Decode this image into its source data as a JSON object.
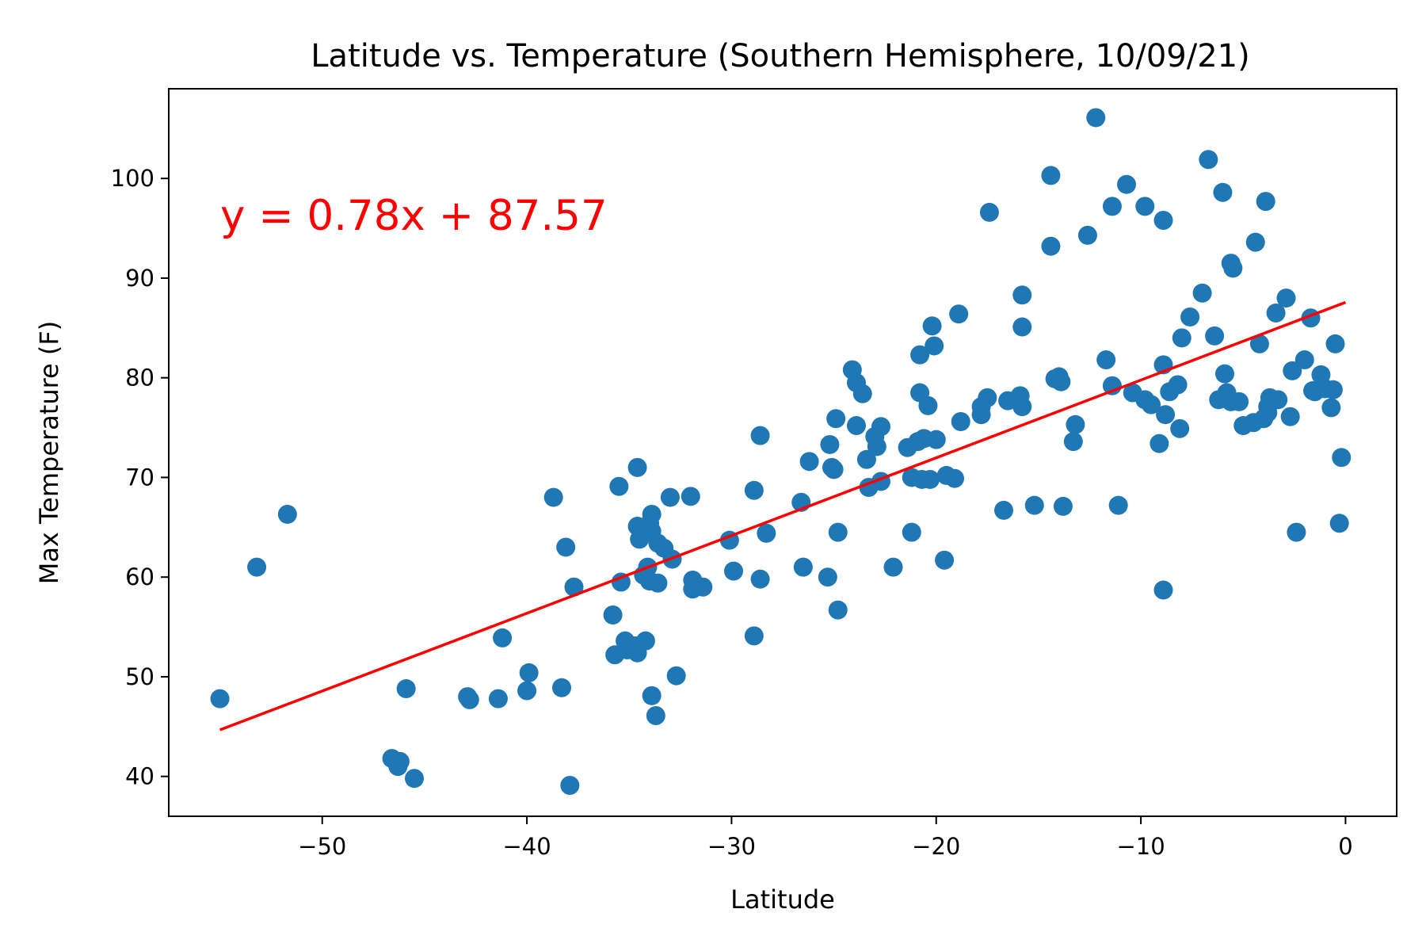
{
  "chart_data": {
    "type": "scatter",
    "title": "Latitude vs. Temperature (Southern Hemisphere, 10/09/21)",
    "xlabel": "Latitude",
    "ylabel": "Max Temperature (F)",
    "xlim": [
      -57.5,
      2.5
    ],
    "ylim": [
      36,
      109
    ],
    "xticks": [
      -50,
      -40,
      -30,
      -20,
      -10,
      0
    ],
    "xtick_labels": [
      "−50",
      "−40",
      "−30",
      "−20",
      "−10",
      "0"
    ],
    "yticks": [
      40,
      50,
      60,
      70,
      80,
      90,
      100
    ],
    "ytick_labels": [
      "40",
      "50",
      "60",
      "70",
      "80",
      "90",
      "100"
    ],
    "grid": false,
    "point_color": "#1f77b4",
    "regression": {
      "slope": 0.78,
      "intercept": 87.57,
      "x_range": [
        -55,
        0
      ],
      "color": "#ff0000",
      "label": "y = 0.78x + 87.57"
    },
    "points": [
      [
        -55.0,
        47.8
      ],
      [
        -53.2,
        61
      ],
      [
        -51.7,
        66.3
      ],
      [
        -46.6,
        41.8
      ],
      [
        -46.3,
        41
      ],
      [
        -46.2,
        41.5
      ],
      [
        -45.9,
        48.8
      ],
      [
        -45.5,
        39.8
      ],
      [
        -42.9,
        48
      ],
      [
        -42.8,
        47.7
      ],
      [
        -41.4,
        47.8
      ],
      [
        -41.2,
        53.9
      ],
      [
        -40.0,
        48.6
      ],
      [
        -39.9,
        50.4
      ],
      [
        -38.7,
        68
      ],
      [
        -38.3,
        48.9
      ],
      [
        -38.1,
        63
      ],
      [
        -37.9,
        39.1
      ],
      [
        -37.7,
        59
      ],
      [
        -35.8,
        56.2
      ],
      [
        -35.7,
        52.2
      ],
      [
        -35.5,
        69.1
      ],
      [
        -35.4,
        59.5
      ],
      [
        -35.2,
        53.6
      ],
      [
        -35.1,
        52.7
      ],
      [
        -34.7,
        53.1
      ],
      [
        -34.6,
        52.4
      ],
      [
        -34.6,
        71
      ],
      [
        -34.6,
        65.1
      ],
      [
        -34.5,
        63.8
      ],
      [
        -34.3,
        60.2
      ],
      [
        -34.2,
        53.6
      ],
      [
        -34.1,
        61
      ],
      [
        -34.0,
        59.6
      ],
      [
        -34.0,
        65.4
      ],
      [
        -33.9,
        66.3
      ],
      [
        -33.9,
        64.6
      ],
      [
        -33.9,
        48.1
      ],
      [
        -33.7,
        46.1
      ],
      [
        -33.6,
        63.4
      ],
      [
        -33.6,
        59.4
      ],
      [
        -33.3,
        62.9
      ],
      [
        -33.0,
        68
      ],
      [
        -32.9,
        61.8
      ],
      [
        -32.7,
        50.1
      ],
      [
        -32.0,
        68.1
      ],
      [
        -31.9,
        59.7
      ],
      [
        -31.9,
        58.8
      ],
      [
        -31.4,
        59
      ],
      [
        -30.1,
        63.7
      ],
      [
        -29.9,
        60.6
      ],
      [
        -28.9,
        68.7
      ],
      [
        -28.9,
        54.1
      ],
      [
        -28.6,
        74.2
      ],
      [
        -28.6,
        59.8
      ],
      [
        -28.3,
        64.4
      ],
      [
        -26.6,
        67.5
      ],
      [
        -26.5,
        61
      ],
      [
        -26.2,
        71.6
      ],
      [
        -25.3,
        60
      ],
      [
        -25.2,
        73.3
      ],
      [
        -25.1,
        71
      ],
      [
        -25.0,
        70.8
      ],
      [
        -24.9,
        75.9
      ],
      [
        -24.8,
        64.5
      ],
      [
        -24.8,
        56.7
      ],
      [
        -24.1,
        80.8
      ],
      [
        -23.9,
        79.5
      ],
      [
        -23.9,
        75.2
      ],
      [
        -23.6,
        78.4
      ],
      [
        -23.4,
        71.8
      ],
      [
        -23.3,
        69
      ],
      [
        -23.0,
        74.1
      ],
      [
        -22.9,
        73.1
      ],
      [
        -22.7,
        75.1
      ],
      [
        -22.7,
        69.6
      ],
      [
        -22.1,
        61
      ],
      [
        -21.4,
        73
      ],
      [
        -21.2,
        64.5
      ],
      [
        -21.2,
        70
      ],
      [
        -20.9,
        73.6
      ],
      [
        -20.8,
        78.5
      ],
      [
        -20.8,
        82.3
      ],
      [
        -20.7,
        69.8
      ],
      [
        -20.6,
        73.9
      ],
      [
        -20.4,
        77.2
      ],
      [
        -20.3,
        69.8
      ],
      [
        -20.2,
        85.2
      ],
      [
        -20.1,
        83.2
      ],
      [
        -20.0,
        73.8
      ],
      [
        -19.6,
        61.7
      ],
      [
        -19.5,
        70.2
      ],
      [
        -19.1,
        69.9
      ],
      [
        -18.9,
        86.4
      ],
      [
        -18.8,
        75.6
      ],
      [
        -17.8,
        76.3
      ],
      [
        -17.8,
        77.1
      ],
      [
        -17.5,
        78
      ],
      [
        -17.4,
        96.6
      ],
      [
        -16.7,
        66.7
      ],
      [
        -16.5,
        77.7
      ],
      [
        -15.9,
        78.2
      ],
      [
        -15.8,
        77.1
      ],
      [
        -15.8,
        88.3
      ],
      [
        -15.8,
        85.1
      ],
      [
        -15.2,
        67.2
      ],
      [
        -14.4,
        100.3
      ],
      [
        -14.4,
        93.2
      ],
      [
        -14.2,
        79.9
      ],
      [
        -14.0,
        80.1
      ],
      [
        -13.9,
        79.6
      ],
      [
        -13.8,
        67.1
      ],
      [
        -13.3,
        73.6
      ],
      [
        -13.2,
        75.3
      ],
      [
        -12.6,
        94.3
      ],
      [
        -12.2,
        106.1
      ],
      [
        -11.7,
        81.8
      ],
      [
        -11.4,
        97.2
      ],
      [
        -11.4,
        79.2
      ],
      [
        -11.1,
        67.2
      ],
      [
        -10.7,
        99.4
      ],
      [
        -10.4,
        78.5
      ],
      [
        -9.8,
        97.2
      ],
      [
        -9.8,
        77.8
      ],
      [
        -9.5,
        77.3
      ],
      [
        -9.1,
        73.4
      ],
      [
        -8.9,
        81.3
      ],
      [
        -8.9,
        95.8
      ],
      [
        -8.9,
        58.7
      ],
      [
        -8.8,
        76.3
      ],
      [
        -8.6,
        78.6
      ],
      [
        -8.2,
        79.3
      ],
      [
        -8.1,
        74.9
      ],
      [
        -8.0,
        84
      ],
      [
        -7.6,
        86.1
      ],
      [
        -7.0,
        88.5
      ],
      [
        -6.7,
        101.9
      ],
      [
        -6.4,
        84.2
      ],
      [
        -6.2,
        77.8
      ],
      [
        -6.0,
        98.6
      ],
      [
        -5.9,
        80.4
      ],
      [
        -5.8,
        78.5
      ],
      [
        -5.6,
        77.6
      ],
      [
        -5.6,
        91.5
      ],
      [
        -5.5,
        91
      ],
      [
        -5.2,
        77.6
      ],
      [
        -5.0,
        75.2
      ],
      [
        -4.5,
        75.5
      ],
      [
        -4.4,
        93.6
      ],
      [
        -4.2,
        83.4
      ],
      [
        -4.0,
        75.9
      ],
      [
        -3.9,
        97.7
      ],
      [
        -3.8,
        77.1
      ],
      [
        -3.8,
        76.5
      ],
      [
        -3.7,
        78
      ],
      [
        -3.4,
        86.5
      ],
      [
        -3.3,
        77.8
      ],
      [
        -2.9,
        88
      ],
      [
        -2.7,
        76.1
      ],
      [
        -2.6,
        80.7
      ],
      [
        -2.4,
        64.5
      ],
      [
        -2.0,
        81.8
      ],
      [
        -1.7,
        86
      ],
      [
        -1.6,
        78.7
      ],
      [
        -1.5,
        78.6
      ],
      [
        -1.2,
        80.3
      ],
      [
        -1.0,
        78.9
      ],
      [
        -0.7,
        77
      ],
      [
        -0.6,
        78.8
      ],
      [
        -0.5,
        83.4
      ],
      [
        -0.3,
        65.4
      ],
      [
        -0.2,
        72
      ]
    ]
  }
}
